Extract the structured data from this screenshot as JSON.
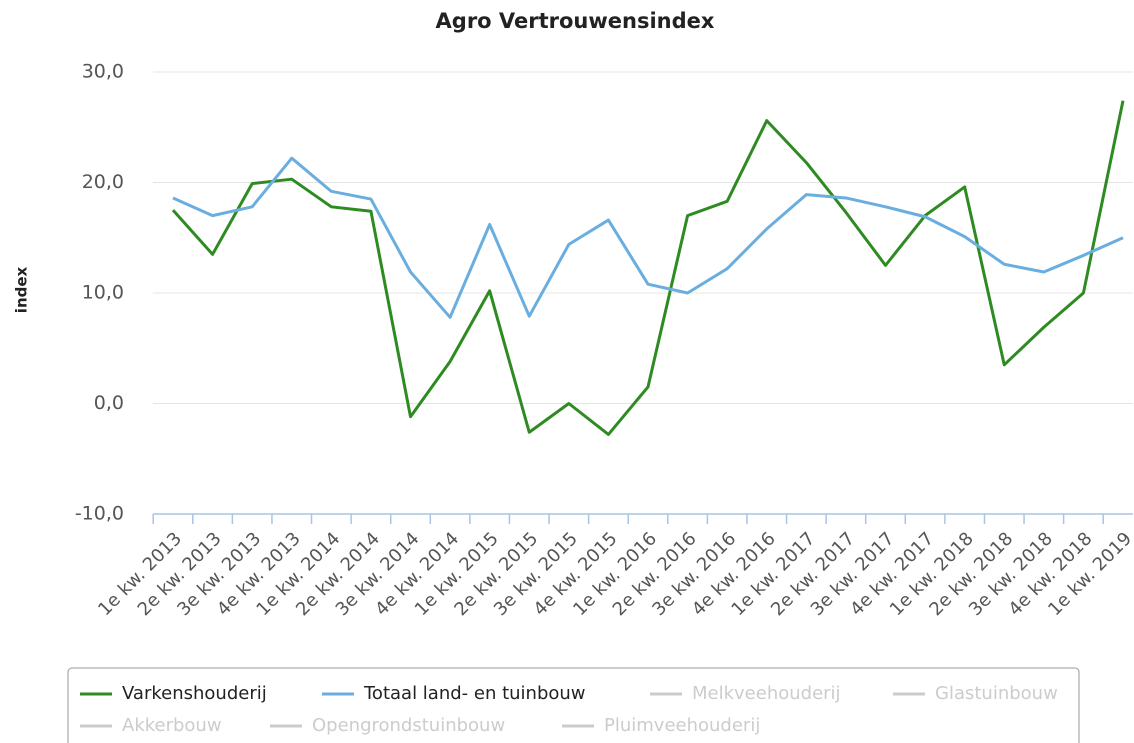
{
  "chart_data": {
    "type": "line",
    "title": "Agro Vertrouwensindex",
    "y_label": "index",
    "categories": [
      "1e kw. 2013",
      "2e kw. 2013",
      "3e kw. 2013",
      "4e kw. 2013",
      "1e kw. 2014",
      "2e kw. 2014",
      "3e kw. 2014",
      "4e kw. 2014",
      "1e kw. 2015",
      "2e kw. 2015",
      "3e kw. 2015",
      "4e kw. 2015",
      "1e kw. 2016",
      "2e kw. 2016",
      "3e kw. 2016",
      "4e kw. 2016",
      "1e kw. 2017",
      "2e kw. 2017",
      "3e kw. 2017",
      "4e kw. 2017",
      "1e kw. 2018",
      "2e kw. 2018",
      "3e kw. 2018",
      "4e kw. 2018",
      "1e kw. 2019"
    ],
    "series": [
      {
        "name": "Varkenshouderij",
        "color": "#2e8b22",
        "values": [
          17.5,
          13.5,
          19.9,
          20.3,
          17.8,
          17.4,
          -1.2,
          3.8,
          10.2,
          -2.6,
          0.0,
          -2.8,
          1.5,
          17.0,
          18.3,
          25.6,
          21.8,
          17.3,
          12.5,
          17.0,
          19.6,
          3.5,
          6.9,
          10.0,
          27.4
        ]
      },
      {
        "name": "Totaal land- en tuinbouw",
        "color": "#6aaee0",
        "values": [
          18.6,
          17.0,
          17.8,
          22.2,
          19.2,
          18.5,
          11.9,
          7.8,
          16.2,
          7.9,
          14.4,
          16.6,
          10.8,
          10.0,
          12.2,
          15.8,
          18.9,
          18.6,
          17.8,
          16.9,
          15.1,
          12.6,
          11.9,
          13.4,
          15.0
        ]
      }
    ],
    "hidden_series": [
      "Melkveehouderij",
      "Glastuinbouw",
      "Akkerbouw",
      "Opengrondstuinbouw",
      "Pluimveehouderij"
    ],
    "hidden_color": "#cccccc",
    "ylim": [
      -10,
      30
    ],
    "yticks": [
      {
        "value": -10,
        "label": "-10,0"
      },
      {
        "value": 0,
        "label": "0,0"
      },
      {
        "value": 10,
        "label": "10,0"
      },
      {
        "value": 20,
        "label": "20,0"
      },
      {
        "value": 30,
        "label": "30,0"
      }
    ],
    "grid": true
  }
}
